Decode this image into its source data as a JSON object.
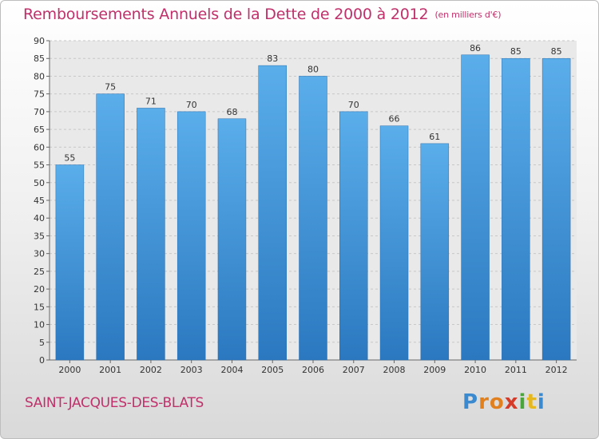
{
  "chart_data": {
    "type": "bar",
    "title": "Remboursements Annuels de la Dette de 2000 à 2012",
    "subtitle": "(en milliers d'€)",
    "categories": [
      "2000",
      "2001",
      "2002",
      "2003",
      "2004",
      "2005",
      "2006",
      "2007",
      "2008",
      "2009",
      "2010",
      "2011",
      "2012"
    ],
    "values": [
      55,
      75,
      71,
      70,
      68,
      83,
      80,
      70,
      66,
      61,
      86,
      85,
      85
    ],
    "ylim": [
      0,
      90
    ],
    "yticks": [
      0,
      5,
      10,
      15,
      20,
      25,
      30,
      35,
      40,
      45,
      50,
      55,
      60,
      65,
      70,
      75,
      80,
      85,
      90
    ],
    "grid": true,
    "bar_color": "#3a8fd6"
  },
  "location": "SAINT-JACQUES-DES-BLATS",
  "brand": {
    "letters": [
      "P",
      "r",
      "o",
      "x",
      "i",
      "t",
      "i"
    ],
    "colors": [
      "#3b8ad0",
      "#e0801e",
      "#e0801e",
      "#d63b2a",
      "#4aa63b",
      "#e6b81e",
      "#3b8ad0"
    ]
  }
}
